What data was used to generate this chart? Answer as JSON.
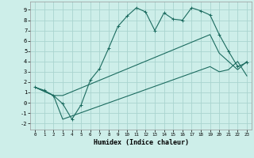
{
  "xlabel": "Humidex (Indice chaleur)",
  "bg_color": "#cdeee9",
  "grid_color": "#aad4cf",
  "line_color": "#1b6b5f",
  "xlim": [
    -0.5,
    23.5
  ],
  "ylim": [
    -2.6,
    9.8
  ],
  "xticks": [
    0,
    1,
    2,
    3,
    4,
    5,
    6,
    7,
    8,
    9,
    10,
    11,
    12,
    13,
    14,
    15,
    16,
    17,
    18,
    19,
    20,
    21,
    22,
    23
  ],
  "yticks": [
    -2,
    -1,
    0,
    1,
    2,
    3,
    4,
    5,
    6,
    7,
    8,
    9
  ],
  "line1_x": [
    0,
    1,
    2,
    3,
    4,
    5,
    6,
    7,
    8,
    9,
    10,
    11,
    12,
    13,
    14,
    15,
    16,
    17,
    18,
    19,
    20,
    21,
    22,
    23
  ],
  "line1_y": [
    1.5,
    1.2,
    0.7,
    -0.1,
    -1.6,
    -0.2,
    2.2,
    3.3,
    5.3,
    7.4,
    8.4,
    9.2,
    8.8,
    7.0,
    8.7,
    8.1,
    8.0,
    9.2,
    8.9,
    8.5,
    6.6,
    5.0,
    3.5,
    3.9
  ],
  "line2_x": [
    0,
    2,
    3,
    19,
    20,
    21,
    22,
    23
  ],
  "line2_y": [
    1.5,
    0.7,
    0.7,
    6.6,
    4.8,
    4.0,
    3.2,
    4.0
  ],
  "line3_x": [
    0,
    2,
    3,
    19,
    20,
    21,
    22,
    23
  ],
  "line3_y": [
    1.5,
    0.7,
    -1.6,
    3.5,
    3.0,
    3.2,
    4.0,
    2.6
  ]
}
